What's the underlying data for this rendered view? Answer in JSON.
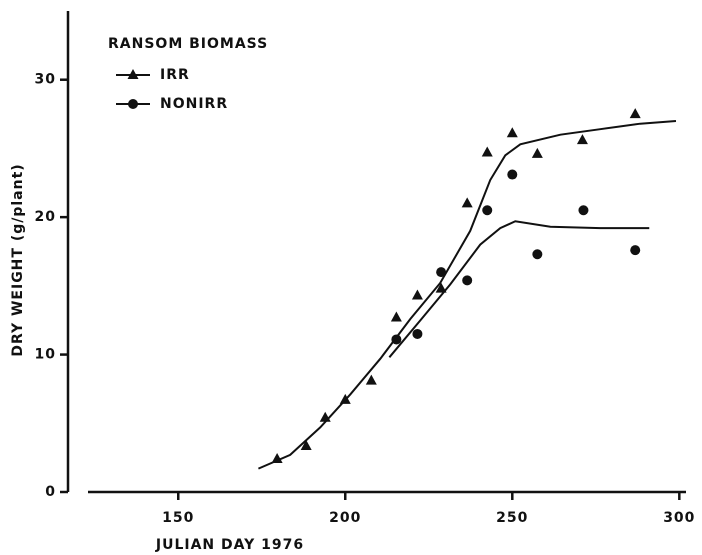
{
  "chart_data": {
    "type": "scatter",
    "xlabel": "JULIAN DAY   1976",
    "ylabel": "DRY   WEIGHT   (g/plant)",
    "legend_title": "RANSOM   BIOMASS",
    "legend": "upper left",
    "xlim": [
      117,
      302
    ],
    "xticks": [
      150,
      200,
      250,
      300
    ],
    "ylim": [
      0,
      35
    ],
    "yticks": [
      0,
      10,
      20,
      30
    ],
    "series": [
      {
        "name": "IRR",
        "marker": "triangle",
        "color": "#111111",
        "x": [
          179.6,
          188.3,
          194,
          200,
          207.8,
          215.3,
          221.6,
          228.7,
          236.5,
          242.5,
          250,
          257.5,
          271,
          286.8
        ],
        "values": [
          2.4,
          3.35,
          5.4,
          6.7,
          8.1,
          12.7,
          14.3,
          14.8,
          21.0,
          24.7,
          26.1,
          24.6,
          25.6,
          27.5
        ],
        "curve_x": [
          174,
          183.5,
          192.5,
          201.5,
          210.5,
          219.5,
          228.4,
          237.4,
          243.4,
          247.9,
          252.4,
          264.4,
          276.3,
          288.3,
          299
        ],
        "curve_y": [
          1.7,
          2.7,
          4.7,
          7.1,
          9.7,
          12.6,
          15.2,
          19.0,
          22.7,
          24.5,
          25.3,
          26.0,
          26.4,
          26.8,
          27.0
        ]
      },
      {
        "name": "NONIRR",
        "marker": "circle",
        "color": "#111111",
        "x": [
          215.3,
          221.6,
          228.7,
          236.5,
          242.5,
          250,
          257.5,
          271.3,
          286.8
        ],
        "values": [
          11.1,
          11.5,
          16.0,
          15.4,
          20.5,
          23.1,
          17.3,
          20.5,
          17.6
        ],
        "curve_x": [
          213.2,
          222.5,
          231.4,
          240.4,
          246.4,
          250.9,
          261.4,
          276.3,
          291
        ],
        "curve_y": [
          9.8,
          12.5,
          15.1,
          18.0,
          19.2,
          19.7,
          19.3,
          19.2,
          19.2
        ]
      }
    ]
  }
}
